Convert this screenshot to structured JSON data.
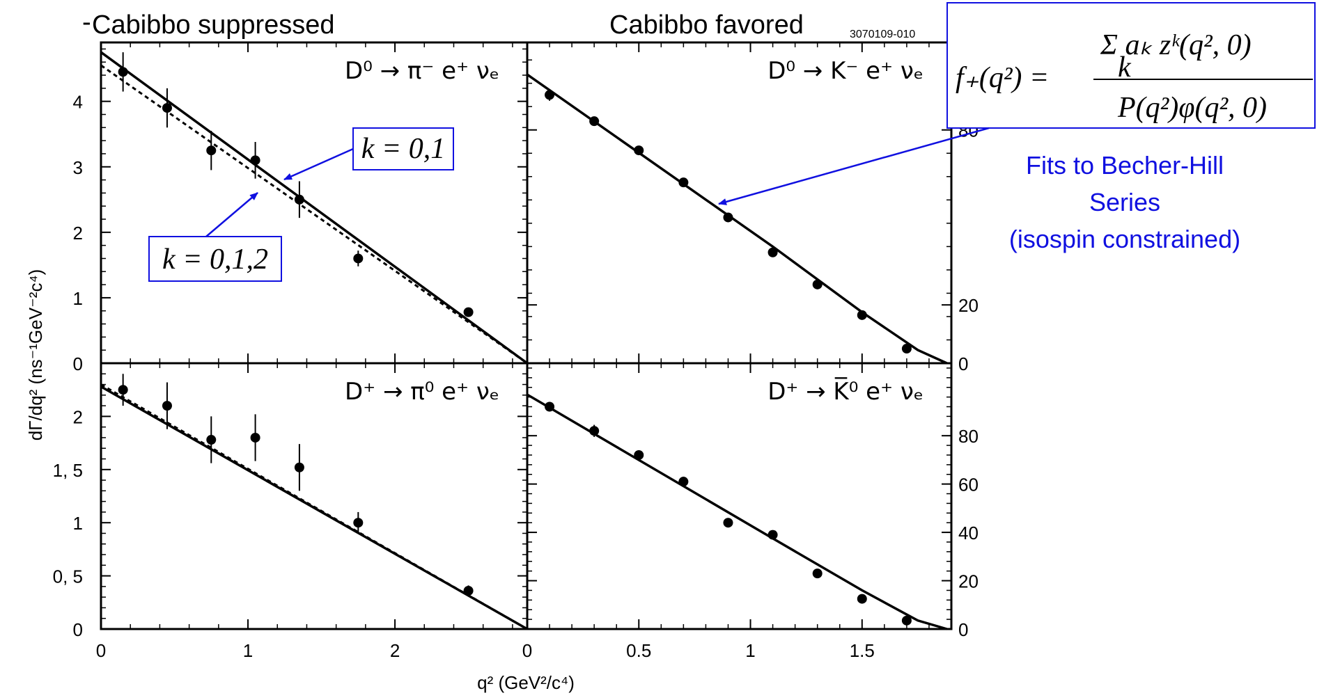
{
  "header": {
    "left_title": "Cabibbo suppressed",
    "right_title": "Cabibbo favored",
    "figure_code": "3070109-010"
  },
  "ylabel": "dΓ/dq² (ns⁻¹GeV⁻²c⁴)",
  "xlabel": "q² (GeV²/c⁴)",
  "formula": {
    "lhs": "f₊(q²) =",
    "numerator": "Σ aₖ zᵏ(q², 0)",
    "sum_index": "k",
    "denominator": "P(q²)φ(q², 0)"
  },
  "annotations": {
    "fit_note": [
      "Fits to Becher-Hill",
      "Series",
      "(isospin constrained)"
    ],
    "k01": "k = 0,1",
    "k012": "k = 0,1,2",
    "color": "#1010e0"
  },
  "chart_data": [
    {
      "type": "scatter",
      "panel": "top-left",
      "reaction": "D⁰ → π⁻ e⁺ νₑ",
      "xlim": [
        0,
        2.9
      ],
      "ylim": [
        0,
        4.9
      ],
      "x_ticks": [
        0,
        1,
        2
      ],
      "y_ticks": [
        0,
        1,
        2,
        3,
        4
      ],
      "y_tick_labels": [
        "0",
        "1",
        "2",
        "3",
        "4"
      ],
      "points": [
        {
          "x": 0.15,
          "y": 4.45,
          "err": 0.3
        },
        {
          "x": 0.45,
          "y": 3.9,
          "err": 0.3
        },
        {
          "x": 0.75,
          "y": 3.25,
          "err": 0.3
        },
        {
          "x": 1.05,
          "y": 3.1,
          "err": 0.28
        },
        {
          "x": 1.35,
          "y": 2.5,
          "err": 0.28
        },
        {
          "x": 1.75,
          "y": 1.6,
          "err": 0.12
        },
        {
          "x": 2.5,
          "y": 0.78,
          "err": 0.06
        }
      ],
      "fits": [
        {
          "name": "k = 0,1",
          "style": "dashed",
          "x": [
            0,
            2.9
          ],
          "y": [
            4.55,
            0
          ]
        },
        {
          "name": "k = 0,1,2",
          "style": "solid",
          "x": [
            0,
            2.9
          ],
          "y": [
            4.75,
            0
          ]
        }
      ]
    },
    {
      "type": "scatter",
      "panel": "top-right",
      "reaction": "D⁰ → K⁻ e⁺ νₑ",
      "xlim": [
        0,
        1.9
      ],
      "ylim": [
        0,
        110
      ],
      "y_ticks": [
        0,
        20,
        80
      ],
      "y_tick_labels": [
        "0",
        "20",
        "80"
      ],
      "points": [
        {
          "x": 0.1,
          "y": 92,
          "err": 2
        },
        {
          "x": 0.3,
          "y": 83,
          "err": 1.5
        },
        {
          "x": 0.5,
          "y": 73,
          "err": 1.5
        },
        {
          "x": 0.7,
          "y": 62,
          "err": 1.2
        },
        {
          "x": 0.9,
          "y": 50,
          "err": 1
        },
        {
          "x": 1.1,
          "y": 38,
          "err": 1
        },
        {
          "x": 1.3,
          "y": 27,
          "err": 1
        },
        {
          "x": 1.5,
          "y": 16.5,
          "err": 0.8
        },
        {
          "x": 1.7,
          "y": 5,
          "err": 0.5
        }
      ],
      "fits": [
        {
          "name": "fit",
          "style": "solid",
          "x": [
            0,
            1.1,
            1.5,
            1.75,
            1.88
          ],
          "y": [
            99,
            40,
            17.5,
            4.5,
            0
          ]
        }
      ]
    },
    {
      "type": "scatter",
      "panel": "bottom-left",
      "reaction": "D⁺ → π⁰ e⁺ νₑ",
      "xlim": [
        0,
        2.9
      ],
      "ylim": [
        0,
        2.5
      ],
      "x_ticks": [
        0,
        1,
        2
      ],
      "y_ticks": [
        0,
        0.5,
        1,
        1.5,
        2
      ],
      "y_tick_labels": [
        "0",
        "0, 5",
        "1",
        "1, 5",
        "2"
      ],
      "points": [
        {
          "x": 0.15,
          "y": 2.25,
          "err": 0.15
        },
        {
          "x": 0.45,
          "y": 2.1,
          "err": 0.22
        },
        {
          "x": 0.75,
          "y": 1.78,
          "err": 0.22
        },
        {
          "x": 1.05,
          "y": 1.8,
          "err": 0.22
        },
        {
          "x": 1.35,
          "y": 1.52,
          "err": 0.22
        },
        {
          "x": 1.75,
          "y": 1.0,
          "err": 0.1
        },
        {
          "x": 2.5,
          "y": 0.36,
          "err": 0.05
        }
      ],
      "fits": [
        {
          "name": "k = 0,1",
          "style": "dashed",
          "x": [
            0,
            2.9
          ],
          "y": [
            2.3,
            0
          ]
        },
        {
          "name": "k = 0,1,2",
          "style": "solid",
          "x": [
            0,
            2.9
          ],
          "y": [
            2.28,
            0
          ]
        }
      ]
    },
    {
      "type": "scatter",
      "panel": "bottom-right",
      "reaction": "D⁺ → K̅⁰ e⁺ νₑ",
      "xlim": [
        0,
        1.9
      ],
      "ylim": [
        0,
        110
      ],
      "x_ticks": [
        0,
        0.5,
        1,
        1.5
      ],
      "x_tick_labels": [
        "0",
        "0.5",
        "1",
        "1.5"
      ],
      "y_ticks": [
        0,
        20,
        40,
        60,
        80
      ],
      "y_tick_labels": [
        "0",
        "20",
        "40",
        "60",
        "80"
      ],
      "points": [
        {
          "x": 0.1,
          "y": 92,
          "err": 2
        },
        {
          "x": 0.3,
          "y": 82,
          "err": 2.5
        },
        {
          "x": 0.5,
          "y": 72,
          "err": 2
        },
        {
          "x": 0.7,
          "y": 61,
          "err": 2
        },
        {
          "x": 0.9,
          "y": 44,
          "err": 1.5
        },
        {
          "x": 1.1,
          "y": 39,
          "err": 1.5
        },
        {
          "x": 1.3,
          "y": 23,
          "err": 1.2
        },
        {
          "x": 1.5,
          "y": 12.5,
          "err": 1
        },
        {
          "x": 1.7,
          "y": 3.5,
          "err": 0.5
        }
      ],
      "fits": [
        {
          "name": "fit",
          "style": "solid",
          "x": [
            0,
            1.1,
            1.5,
            1.75,
            1.88
          ],
          "y": [
            97,
            37.5,
            16,
            3.5,
            0
          ]
        }
      ]
    }
  ]
}
